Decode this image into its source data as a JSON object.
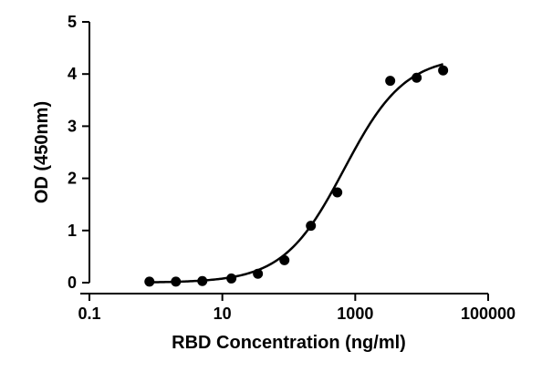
{
  "chart_data": {
    "type": "scatter",
    "title": "",
    "xlabel": "RBD Concentration (ng/ml)",
    "ylabel": "OD (450nm)",
    "x_scale": "log",
    "xlim": [
      0.1,
      100000
    ],
    "ylim": [
      0,
      5
    ],
    "x_ticks": [
      0.1,
      10,
      1000,
      100000
    ],
    "x_tick_labels": [
      "0.1",
      "10",
      "1000",
      "100000"
    ],
    "y_ticks": [
      0,
      1,
      2,
      3,
      4,
      5
    ],
    "y_tick_labels": [
      "0",
      "1",
      "2",
      "3",
      "4",
      "5"
    ],
    "grid": false,
    "legend": "none",
    "series": [
      {
        "points": [
          {
            "x": 0.8,
            "y": 0.02
          },
          {
            "x": 2.0,
            "y": 0.02
          },
          {
            "x": 5.0,
            "y": 0.03
          },
          {
            "x": 13.7,
            "y": 0.08
          },
          {
            "x": 34.3,
            "y": 0.17
          },
          {
            "x": 86.0,
            "y": 0.43
          },
          {
            "x": 215.0,
            "y": 1.09
          },
          {
            "x": 537.0,
            "y": 1.73
          },
          {
            "x": 3360.0,
            "y": 3.87
          },
          {
            "x": 8400.0,
            "y": 3.93
          },
          {
            "x": 21000.0,
            "y": 4.07
          }
        ],
        "fit": {
          "model": "4PL",
          "bottom": 0.0,
          "top": 4.35,
          "ec50": 680,
          "hill": 0.95
        }
      }
    ],
    "colors": {
      "marker": "#000000",
      "line": "#000000",
      "axis": "#000000"
    }
  }
}
